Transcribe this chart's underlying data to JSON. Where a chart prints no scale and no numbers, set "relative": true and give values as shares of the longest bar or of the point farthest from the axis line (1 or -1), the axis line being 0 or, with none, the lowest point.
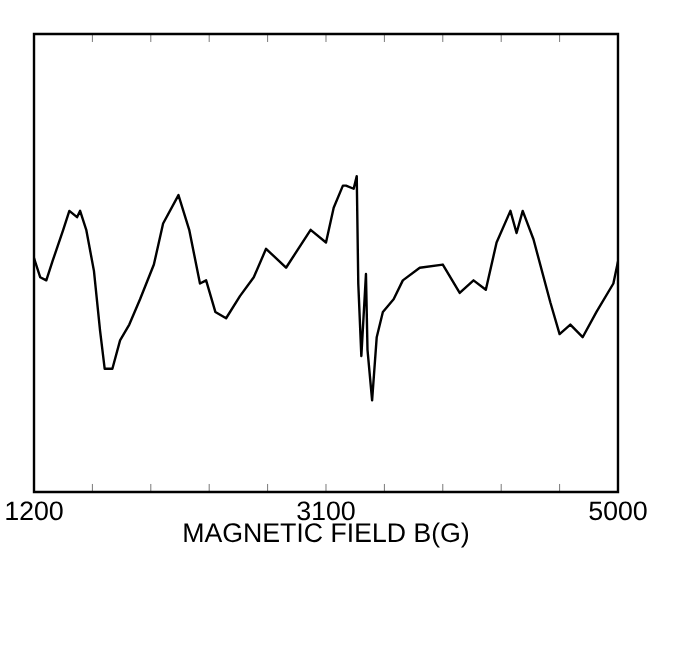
{
  "chart_data": {
    "type": "line",
    "xlabel": "MAGNETIC FIELD B(G)",
    "relative": true,
    "tick_labels": "x",
    "color": "#000000",
    "xlim": [
      1200,
      5000
    ],
    "xticks": [
      1200,
      {
        "value": 1580,
        "label": null
      },
      {
        "value": 1960,
        "label": null
      },
      {
        "value": 2340,
        "label": null
      },
      {
        "value": 2720,
        "label": null
      },
      3100,
      {
        "value": 3480,
        "label": null
      },
      {
        "value": 3860,
        "label": null
      },
      {
        "value": 4240,
        "label": null
      },
      {
        "value": 4620,
        "label": null
      },
      5000
    ],
    "x": [
      1200,
      1240,
      1280,
      1320,
      1390,
      1430,
      1480,
      1500,
      1540,
      1590,
      1630,
      1660,
      1710,
      1760,
      1820,
      1890,
      1980,
      2040,
      2140,
      2210,
      2280,
      2320,
      2380,
      2450,
      2540,
      2630,
      2710,
      2840,
      3000,
      3100,
      3150,
      3210,
      3230,
      3280,
      3300,
      3310,
      3330,
      3360,
      3370,
      3400,
      3430,
      3470,
      3540,
      3600,
      3710,
      3860,
      3970,
      4060,
      4140,
      4210,
      4300,
      4340,
      4380,
      4450,
      4560,
      4620,
      4690,
      4770,
      4860,
      4970,
      5000
    ],
    "values": [
      0.74,
      0.68,
      0.67,
      0.73,
      0.83,
      0.89,
      0.87,
      0.89,
      0.83,
      0.7,
      0.51,
      0.39,
      0.39,
      0.48,
      0.53,
      0.61,
      0.72,
      0.85,
      0.94,
      0.83,
      0.66,
      0.67,
      0.57,
      0.55,
      0.62,
      0.68,
      0.77,
      0.71,
      0.83,
      0.79,
      0.9,
      0.97,
      0.97,
      0.96,
      1.0,
      0.66,
      0.43,
      0.69,
      0.45,
      0.29,
      0.49,
      0.57,
      0.61,
      0.67,
      0.71,
      0.72,
      0.63,
      0.67,
      0.64,
      0.79,
      0.89,
      0.82,
      0.89,
      0.8,
      0.6,
      0.5,
      0.53,
      0.49,
      0.57,
      0.66,
      0.73
    ]
  }
}
